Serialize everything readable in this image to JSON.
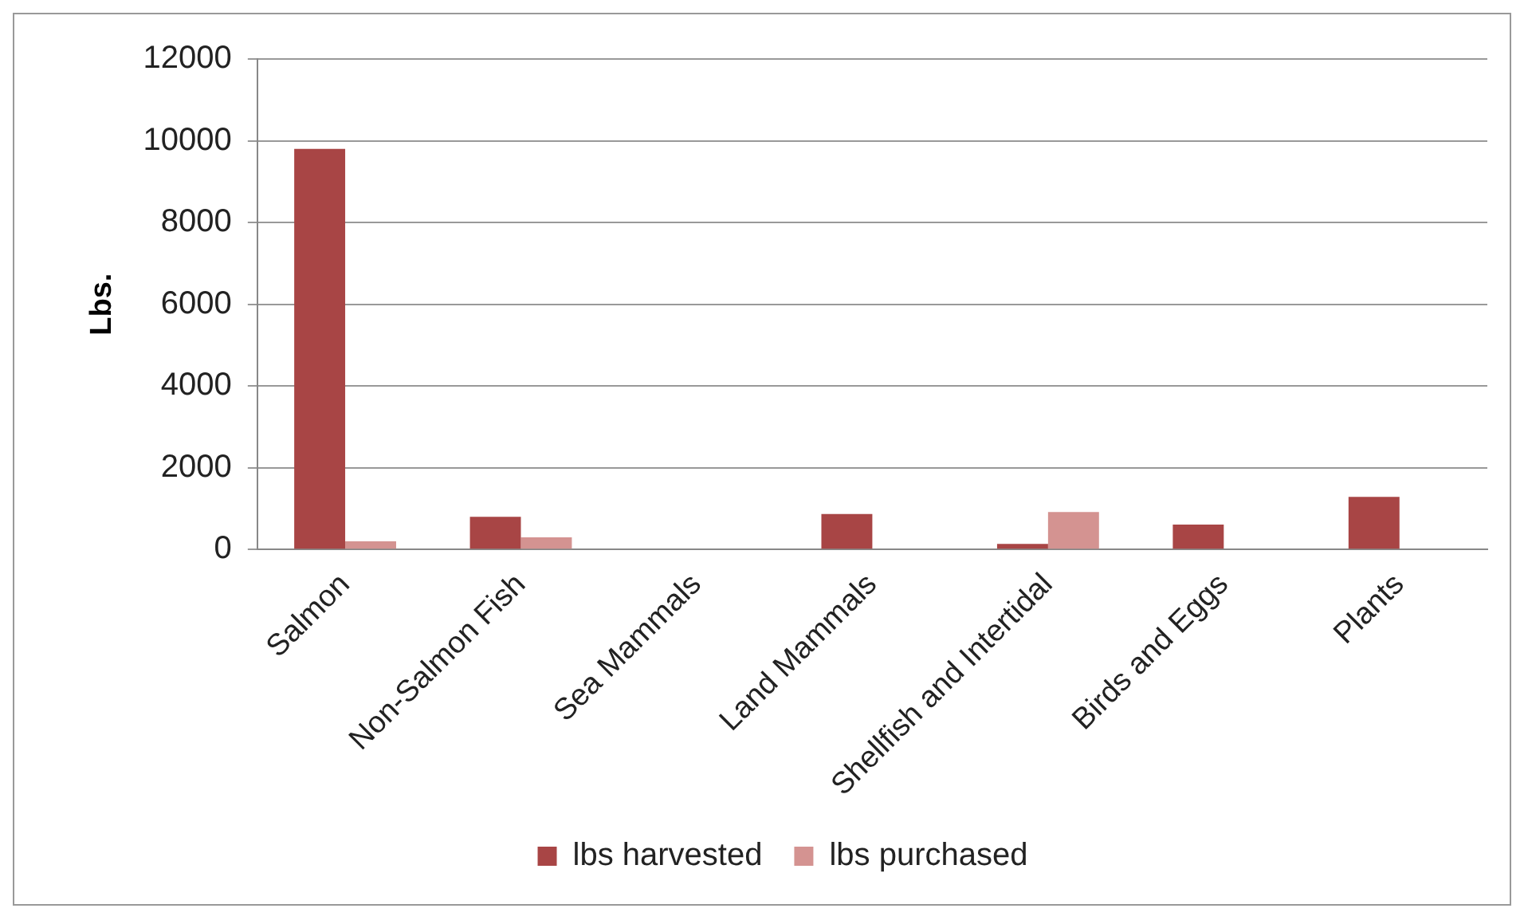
{
  "chart_data": {
    "type": "bar",
    "ylabel": "Lbs.",
    "categories": [
      "Salmon",
      "Non-Salmon Fish",
      "Sea Mammals",
      "Land Mammals",
      "Shellfish and Intertidal",
      "Birds and Eggs",
      "Plants"
    ],
    "series": [
      {
        "name": "lbs harvested",
        "color": "#a84545",
        "values": [
          9800,
          800,
          0,
          870,
          140,
          610,
          1290
        ]
      },
      {
        "name": "lbs purchased",
        "color": "#d49391",
        "values": [
          200,
          300,
          0,
          0,
          920,
          0,
          0
        ]
      }
    ],
    "ylim": [
      0,
      12000
    ],
    "yticks": [
      0,
      2000,
      4000,
      6000,
      8000,
      10000,
      12000
    ],
    "grid": "y",
    "legend": "bottom"
  }
}
